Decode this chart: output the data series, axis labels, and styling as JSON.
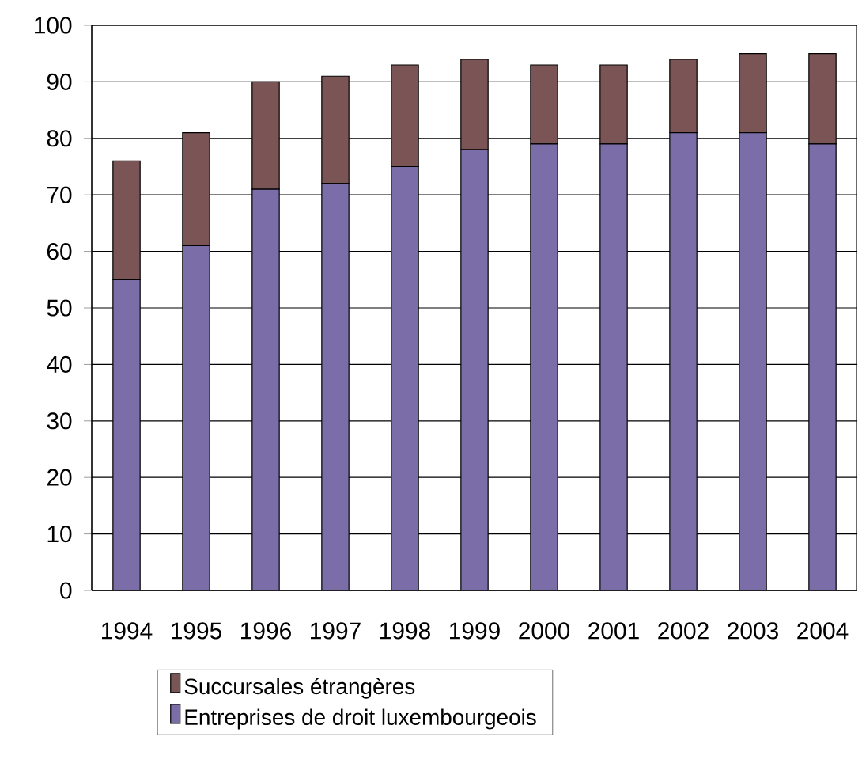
{
  "chart_data": {
    "type": "bar",
    "stacked": true,
    "categories": [
      "1994",
      "1995",
      "1996",
      "1997",
      "1998",
      "1999",
      "2000",
      "2001",
      "2002",
      "2003",
      "2004"
    ],
    "series": [
      {
        "name": "Entreprises de droit luxembourgeois",
        "color": "#7b6ea8",
        "values": [
          55,
          61,
          71,
          72,
          75,
          78,
          79,
          79,
          81,
          81,
          79
        ]
      },
      {
        "name": "Succursales étrangères",
        "color": "#7b5555",
        "values": [
          21,
          20,
          19,
          19,
          18,
          16,
          14,
          14,
          13,
          14,
          16
        ]
      }
    ],
    "ylim": [
      0,
      100
    ],
    "yticks": [
      0,
      10,
      20,
      30,
      40,
      50,
      60,
      70,
      80,
      90,
      100
    ],
    "grid": "y",
    "legend": "bottom"
  }
}
